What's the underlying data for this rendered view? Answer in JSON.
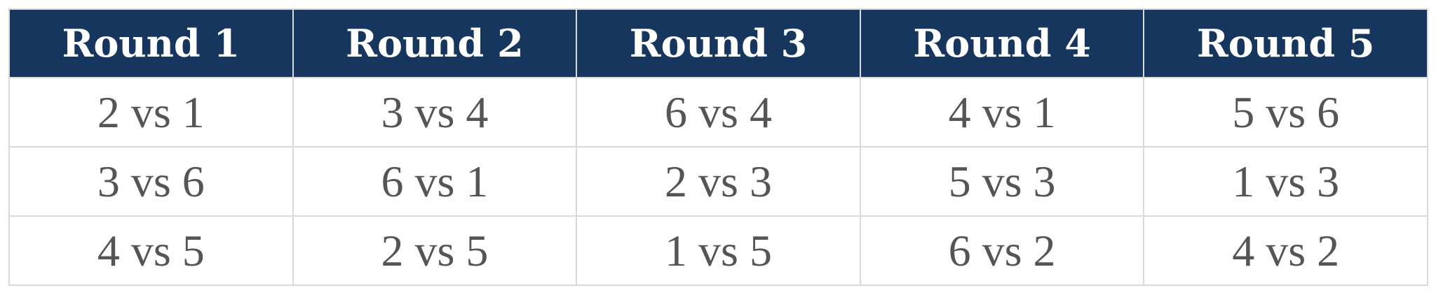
{
  "colors": {
    "header_bg": "#17365d",
    "header_text": "#ffffff",
    "cell_text": "#555555",
    "border": "#d9d9d9"
  },
  "headers": [
    "Round 1",
    "Round 2",
    "Round 3",
    "Round 4",
    "Round 5"
  ],
  "rows": [
    [
      "2 vs 1",
      "3 vs 4",
      "6 vs 4",
      "4 vs 1",
      "5 vs 6"
    ],
    [
      "3 vs 6",
      "6 vs 1",
      "2 vs 3",
      "5 vs 3",
      "1 vs 3"
    ],
    [
      "4 vs 5",
      "2 vs 5",
      "1 vs 5",
      "6 vs 2",
      "4 vs 2"
    ]
  ]
}
